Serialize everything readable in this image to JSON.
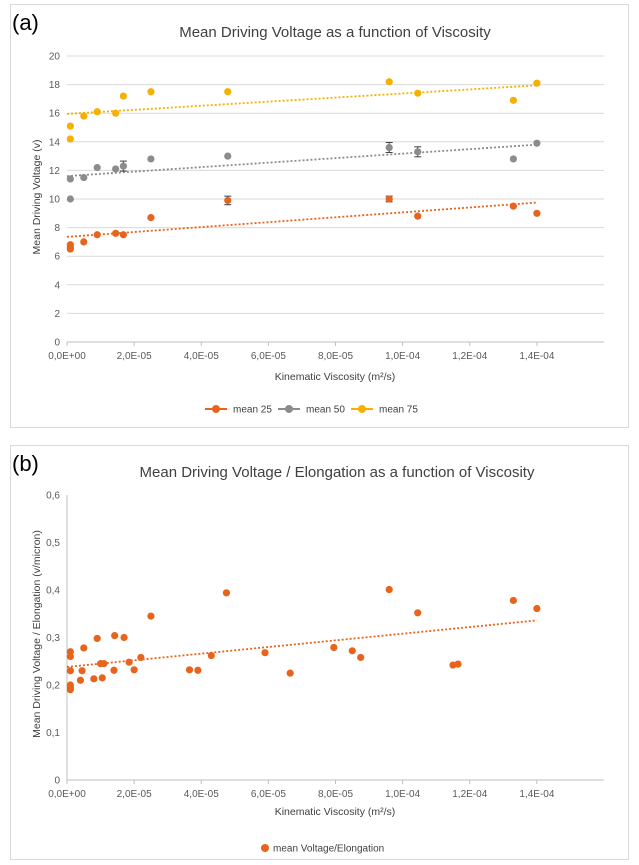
{
  "chart_data": [
    {
      "panel_label": "(a)",
      "type": "scatter",
      "title": "Mean Driving Voltage as a function of Viscosity",
      "xlabel": "Kinematic Viscosity (m²/s)",
      "ylabel": "Mean Driving Voltage (v)",
      "xlim": [
        0,
        0.00016
      ],
      "ylim": [
        0,
        20
      ],
      "xticks": [
        0,
        2e-05,
        4e-05,
        6e-05,
        8e-05,
        0.0001,
        0.00012,
        0.00014
      ],
      "xtick_labels": [
        "0,0E+00",
        "2,0E-05",
        "4,0E-05",
        "6,0E-05",
        "8,0E-05",
        "1,0E-04",
        "1,2E-04",
        "1,4E-04"
      ],
      "yticks": [
        0,
        2,
        4,
        6,
        8,
        10,
        12,
        14,
        16,
        18,
        20
      ],
      "ytick_labels": [
        "0",
        "2",
        "4",
        "6",
        "8",
        "10",
        "12",
        "14",
        "16",
        "18",
        "20"
      ],
      "grid": true,
      "legend_position": "bottom",
      "series": [
        {
          "name": "mean 25",
          "color": "#e8641c",
          "x": [
            1e-06,
            1e-06,
            1e-06,
            5e-06,
            9e-06,
            1.45e-05,
            1.68e-05,
            2.5e-05,
            4.79e-05,
            9.6e-05,
            0.0001045,
            0.000133,
            0.00014
          ],
          "y": [
            6.8,
            6.6,
            6.5,
            7.0,
            7.5,
            7.6,
            7.5,
            8.7,
            9.9,
            10.0,
            8.8,
            9.5,
            9.0
          ],
          "err": [
            0,
            0,
            0,
            0,
            0,
            0,
            0,
            0,
            0.3,
            0.2,
            0,
            0,
            0
          ],
          "trend": [
            [
              0,
              7.35
            ],
            [
              0.00014,
              9.75
            ]
          ]
        },
        {
          "name": "mean 50",
          "color": "#8c8c8c",
          "x": [
            1e-06,
            1e-06,
            5e-06,
            9e-06,
            1.45e-05,
            1.68e-05,
            2.5e-05,
            4.79e-05,
            9.6e-05,
            0.0001045,
            0.000133,
            0.00014
          ],
          "y": [
            11.4,
            10.0,
            11.5,
            12.2,
            12.1,
            12.3,
            12.8,
            13.0,
            13.6,
            13.3,
            12.8,
            13.9
          ],
          "err": [
            0,
            0,
            0,
            0,
            0,
            0.35,
            0,
            0,
            0.35,
            0.35,
            0,
            0
          ],
          "trend": [
            [
              0,
              11.6
            ],
            [
              0.00014,
              13.8
            ]
          ]
        },
        {
          "name": "mean 75",
          "color": "#f5b000",
          "x": [
            1e-06,
            1e-06,
            5e-06,
            9e-06,
            1.45e-05,
            1.68e-05,
            2.5e-05,
            4.79e-05,
            9.6e-05,
            0.0001045,
            0.000133,
            0.00014
          ],
          "y": [
            15.1,
            14.2,
            15.8,
            16.1,
            16.0,
            17.2,
            17.5,
            17.5,
            18.2,
            17.4,
            16.9,
            18.1
          ],
          "err": [
            0,
            0,
            0,
            0,
            0,
            0,
            0,
            0,
            0,
            0,
            0,
            0
          ],
          "trend": [
            [
              0,
              15.95
            ],
            [
              0.00014,
              17.95
            ]
          ]
        }
      ]
    },
    {
      "panel_label": "(b)",
      "type": "scatter",
      "title": "Mean Driving Voltage / Elongation as a function of Viscosity",
      "xlabel": "Kinematic Viscosity (m²/s)",
      "ylabel": "Mean Driving Voltage / Elongation (v/micron)",
      "xlim": [
        0,
        0.00016
      ],
      "ylim": [
        0,
        0.6
      ],
      "xticks": [
        0,
        2e-05,
        4e-05,
        6e-05,
        8e-05,
        0.0001,
        0.00012,
        0.00014
      ],
      "xtick_labels": [
        "0,0E+00",
        "2,0E-05",
        "4,0E-05",
        "6,0E-05",
        "8,0E-05",
        "1,0E-04",
        "1,2E-04",
        "1,4E-04"
      ],
      "yticks": [
        0,
        0.1,
        0.2,
        0.3,
        0.4,
        0.5,
        0.6
      ],
      "ytick_labels": [
        "0",
        "0,1",
        "0,2",
        "0,3",
        "0,4",
        "0,5",
        "0,6"
      ],
      "grid": false,
      "legend_position": "bottom-left",
      "series": [
        {
          "name": "mean Voltage/Elongation",
          "color": "#e8641c",
          "x": [
            1e-06,
            1e-06,
            1e-06,
            1e-06,
            1e-06,
            1e-06,
            4e-06,
            4.5e-06,
            5e-06,
            8e-06,
            9e-06,
            1e-05,
            1.05e-05,
            1.1e-05,
            1.4e-05,
            1.42e-05,
            1.7e-05,
            1.85e-05,
            2e-05,
            2.2e-05,
            2.5e-05,
            3.65e-05,
            3.9e-05,
            4.75e-05,
            4.3e-05,
            5.9e-05,
            6.65e-05,
            7.95e-05,
            8.5e-05,
            8.75e-05,
            9.6e-05,
            0.0001045,
            0.000115,
            0.0001165,
            0.000133,
            0.00014
          ],
          "y": [
            0.27,
            0.26,
            0.23,
            0.2,
            0.195,
            0.19,
            0.21,
            0.23,
            0.278,
            0.213,
            0.298,
            0.245,
            0.215,
            0.245,
            0.231,
            0.304,
            0.3,
            0.248,
            0.232,
            0.258,
            0.345,
            0.232,
            0.231,
            0.394,
            0.262,
            0.268,
            0.225,
            0.279,
            0.272,
            0.258,
            0.401,
            0.352,
            0.242,
            0.244,
            0.378,
            0.361
          ],
          "trend": [
            [
              0,
              0.238
            ],
            [
              0.00014,
              0.336
            ]
          ]
        }
      ]
    }
  ]
}
